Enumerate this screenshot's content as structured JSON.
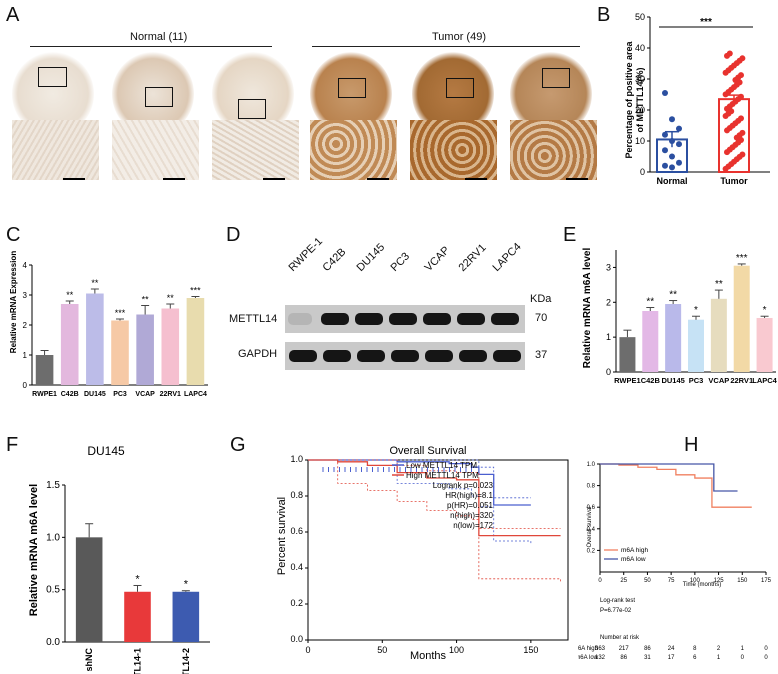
{
  "panels": {
    "a": "A",
    "b": "B",
    "c": "C",
    "d": "D",
    "e": "E",
    "f": "F",
    "g": "G",
    "h": "H"
  },
  "panel_a": {
    "normal_header": "Normal (11)",
    "tumor_header": "Tumor (49)"
  },
  "chart_b": {
    "type": "bar",
    "title": "",
    "ylabel": "Percentage of positive area of METTL14(%)",
    "ylabel_line1": "Percentage of positive area",
    "ylabel_line2": "of METTL14(%)",
    "categories": [
      "Normal",
      "Tumor"
    ],
    "values": [
      10.5,
      23.5
    ],
    "errors": [
      2.5,
      1.3
    ],
    "ylim": [
      0,
      50
    ],
    "yticks": [
      "0",
      "10",
      "20",
      "30",
      "40",
      "50"
    ],
    "significance": "***",
    "normal_points": [
      25.5,
      17,
      14,
      12,
      10,
      9,
      7,
      5,
      3,
      2,
      1.5
    ],
    "colors": {
      "Normal": "#2b4fa0",
      "Tumor": "#e8322e"
    }
  },
  "chart_c": {
    "type": "bar",
    "ylabel": "Relative mRNA Expression",
    "ylim": [
      0,
      4
    ],
    "yticks": [
      "0",
      "1",
      "2",
      "3",
      "4"
    ],
    "categories": [
      "RWPE1",
      "C42B",
      "DU145",
      "PC3",
      "VCAP",
      "22RV1",
      "LAPC4"
    ],
    "values": [
      1.0,
      2.7,
      3.05,
      2.15,
      2.35,
      2.55,
      2.9
    ],
    "errors": [
      0.15,
      0.1,
      0.15,
      0.05,
      0.3,
      0.15,
      0.05
    ],
    "sig": [
      "",
      "**",
      "**",
      "***",
      "**",
      "**",
      "***"
    ],
    "colors": [
      "#6d6d6d",
      "#e3b8de",
      "#bcbce8",
      "#f6c9a6",
      "#b0a9d6",
      "#f5bfcf",
      "#e8dcae"
    ]
  },
  "panel_d": {
    "lanes": [
      "RWPE-1",
      "C42B",
      "DU145",
      "PC3",
      "VCAP",
      "22RV1",
      "LAPC4"
    ],
    "kda_label": "KDa",
    "rows": [
      {
        "name": "METTL14",
        "kda": "70"
      },
      {
        "name": "GAPDH",
        "kda": "37"
      }
    ]
  },
  "chart_e": {
    "type": "bar",
    "ylabel": "Relative mRNA m6A  level",
    "ylim": [
      0,
      3.5
    ],
    "yticks": [
      "0",
      "1",
      "2",
      "3"
    ],
    "categories": [
      "RWPE1",
      "C42B",
      "DU145",
      "PC3",
      "VCAP",
      "22RV1",
      "LAPC4"
    ],
    "values": [
      1.0,
      1.75,
      1.95,
      1.5,
      2.1,
      3.05,
      1.55
    ],
    "errors": [
      0.2,
      0.1,
      0.1,
      0.1,
      0.25,
      0.05,
      0.05
    ],
    "sig": [
      "",
      "**",
      "**",
      "*",
      "**",
      "***",
      "*"
    ],
    "colors": [
      "#6d6d6d",
      "#e3b8e6",
      "#b9b9ea",
      "#c6e2f5",
      "#e6dcbe",
      "#f2d9a6",
      "#f9c9d0"
    ]
  },
  "chart_f": {
    "type": "bar",
    "title": "DU145",
    "ylabel": "Relative mRNA m6A  level",
    "ylim": [
      0,
      1.5
    ],
    "yticks": [
      "0.0",
      "0.5",
      "1.0",
      "1.5"
    ],
    "categories": [
      "shNC",
      "shMETTL14-1",
      "shMETTL14-2"
    ],
    "values": [
      1.0,
      0.48,
      0.48
    ],
    "errors": [
      0.13,
      0.06,
      0.01
    ],
    "sig": [
      "",
      "*",
      "*"
    ],
    "colors": [
      "#595959",
      "#e8393a",
      "#3d5bb0"
    ]
  },
  "chart_g": {
    "type": "line",
    "title": "Overall Survival",
    "xlabel": "Months",
    "ylabel": "Percent survival",
    "xlim": [
      0,
      175
    ],
    "ylim": [
      0,
      1.0
    ],
    "xticks": [
      "0",
      "50",
      "100",
      "150"
    ],
    "yticks": [
      "0.0",
      "0.2",
      "0.4",
      "0.6",
      "0.8",
      "1.0"
    ],
    "legend": [
      "Low METTL14 TPM",
      "High METTL14 TPM"
    ],
    "stats": [
      "Logrank p=0.023",
      "HR(high)=8.1",
      "p(HR)=0.051",
      "n(high)=320",
      "n(low)=172"
    ],
    "series": [
      {
        "name": "Low METTL14 TPM",
        "color": "#4a5fcf",
        "x": [
          0,
          60,
          95,
          110,
          115,
          125,
          150
        ],
        "y": [
          1.0,
          0.99,
          0.98,
          0.96,
          0.92,
          0.75,
          0.75
        ]
      },
      {
        "name": "High METTL14 TPM",
        "color": "#e0473a",
        "x": [
          0,
          20,
          40,
          60,
          80,
          100,
          110,
          115,
          170
        ],
        "y": [
          1.0,
          0.99,
          0.97,
          0.93,
          0.9,
          0.89,
          0.89,
          0.58,
          0.58
        ]
      }
    ]
  },
  "chart_h": {
    "type": "line",
    "xlabel": "Time (months)",
    "ylabel": "Overall survival",
    "xlim": [
      0,
      175
    ],
    "ylim": [
      0,
      1.0
    ],
    "xticks": [
      "0",
      "25",
      "50",
      "75",
      "100",
      "125",
      "150",
      "175"
    ],
    "yticks": [
      "0.2",
      "0.4",
      "0.6",
      "0.8",
      "1.0"
    ],
    "legend": [
      "m6A high",
      "m6A low"
    ],
    "test": "Log-rank test",
    "pvalue": "P=6.77e-02",
    "series": [
      {
        "name": "m6A high",
        "color": "#f08060",
        "x": [
          0,
          20,
          40,
          60,
          80,
          100,
          118,
          160
        ],
        "y": [
          1.0,
          0.99,
          0.97,
          0.95,
          0.9,
          0.87,
          0.6,
          0.6
        ]
      },
      {
        "name": "m6A low",
        "color": "#4656a6",
        "x": [
          0,
          118,
          120,
          145
        ],
        "y": [
          1.0,
          1.0,
          0.75,
          0.75
        ]
      }
    ],
    "risk_title": "Number at risk",
    "risk_rows": [
      {
        "label": "m6A high",
        "values": [
          "363",
          "217",
          "86",
          "24",
          "8",
          "2",
          "1",
          "0"
        ]
      },
      {
        "label": "m6A low",
        "values": [
          "132",
          "86",
          "31",
          "17",
          "6",
          "1",
          "0",
          "0"
        ]
      }
    ]
  }
}
